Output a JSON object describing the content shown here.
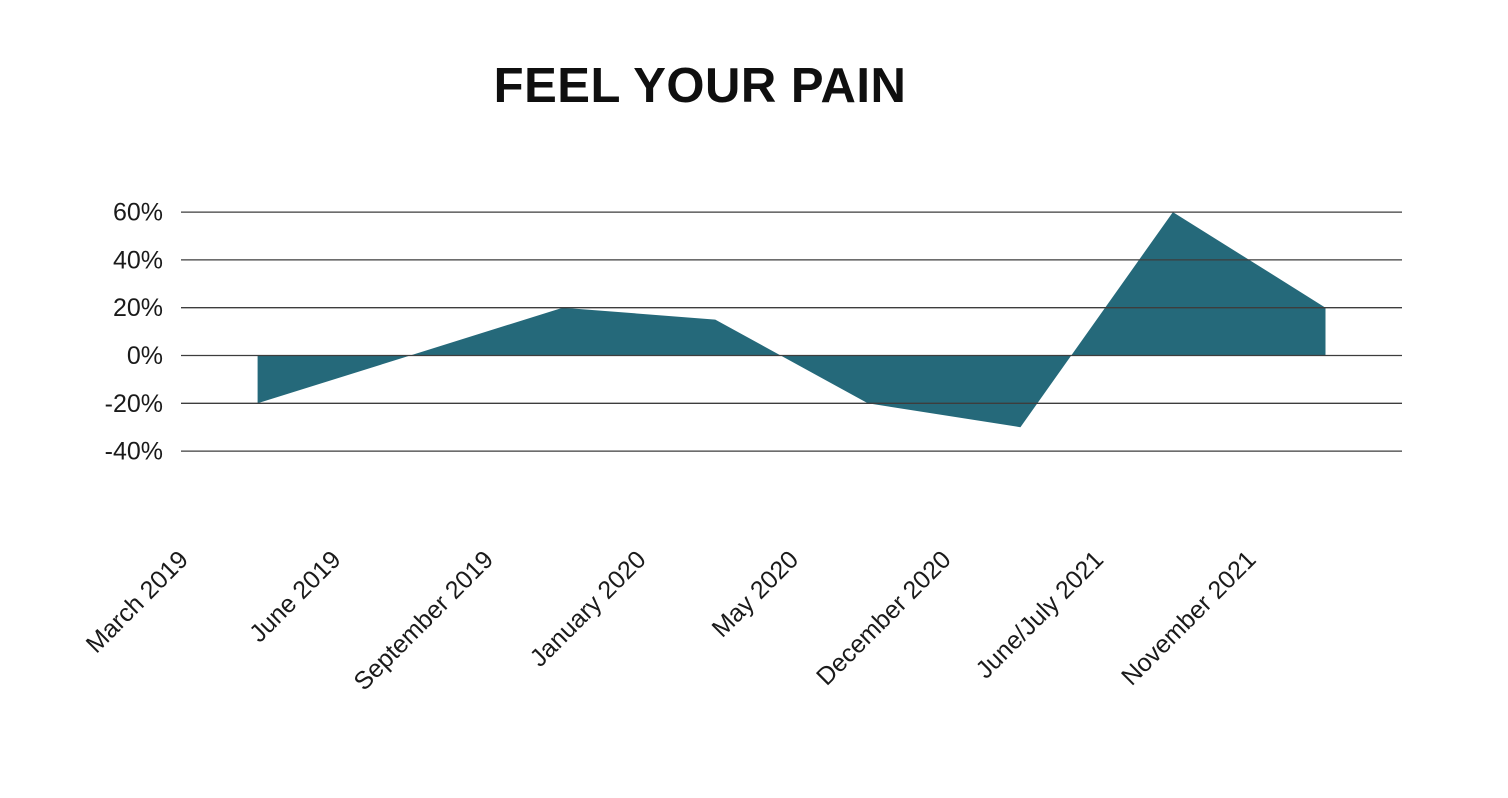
{
  "page": {
    "background": "#ffffff"
  },
  "colors": {
    "series_fill": "#25697a",
    "grid_line": "#3d3d3d",
    "axis_text": "#1a1a1a",
    "title_text": "#0f0f0f"
  },
  "chart_data": {
    "type": "area",
    "title": "FEEL YOUR PAIN",
    "categories": [
      "March 2019",
      "June 2019",
      "September 2019",
      "January 2020",
      "May 2020",
      "December 2020",
      "June/July 2021",
      "November 2021"
    ],
    "values": [
      -20,
      0,
      20,
      15,
      -20,
      -30,
      60,
      20
    ],
    "unit": "%",
    "baseline": 0,
    "ylim": [
      -40,
      60
    ],
    "yticks": [
      "60%",
      "40%",
      "20%",
      "0%",
      "-20%",
      "-40%"
    ],
    "ytick_values": [
      60,
      40,
      20,
      0,
      -20,
      -40
    ],
    "xlabel": "",
    "ylabel": "",
    "grid": "horizontal-only",
    "legend": "none",
    "x_label_rotation_deg": -45
  }
}
